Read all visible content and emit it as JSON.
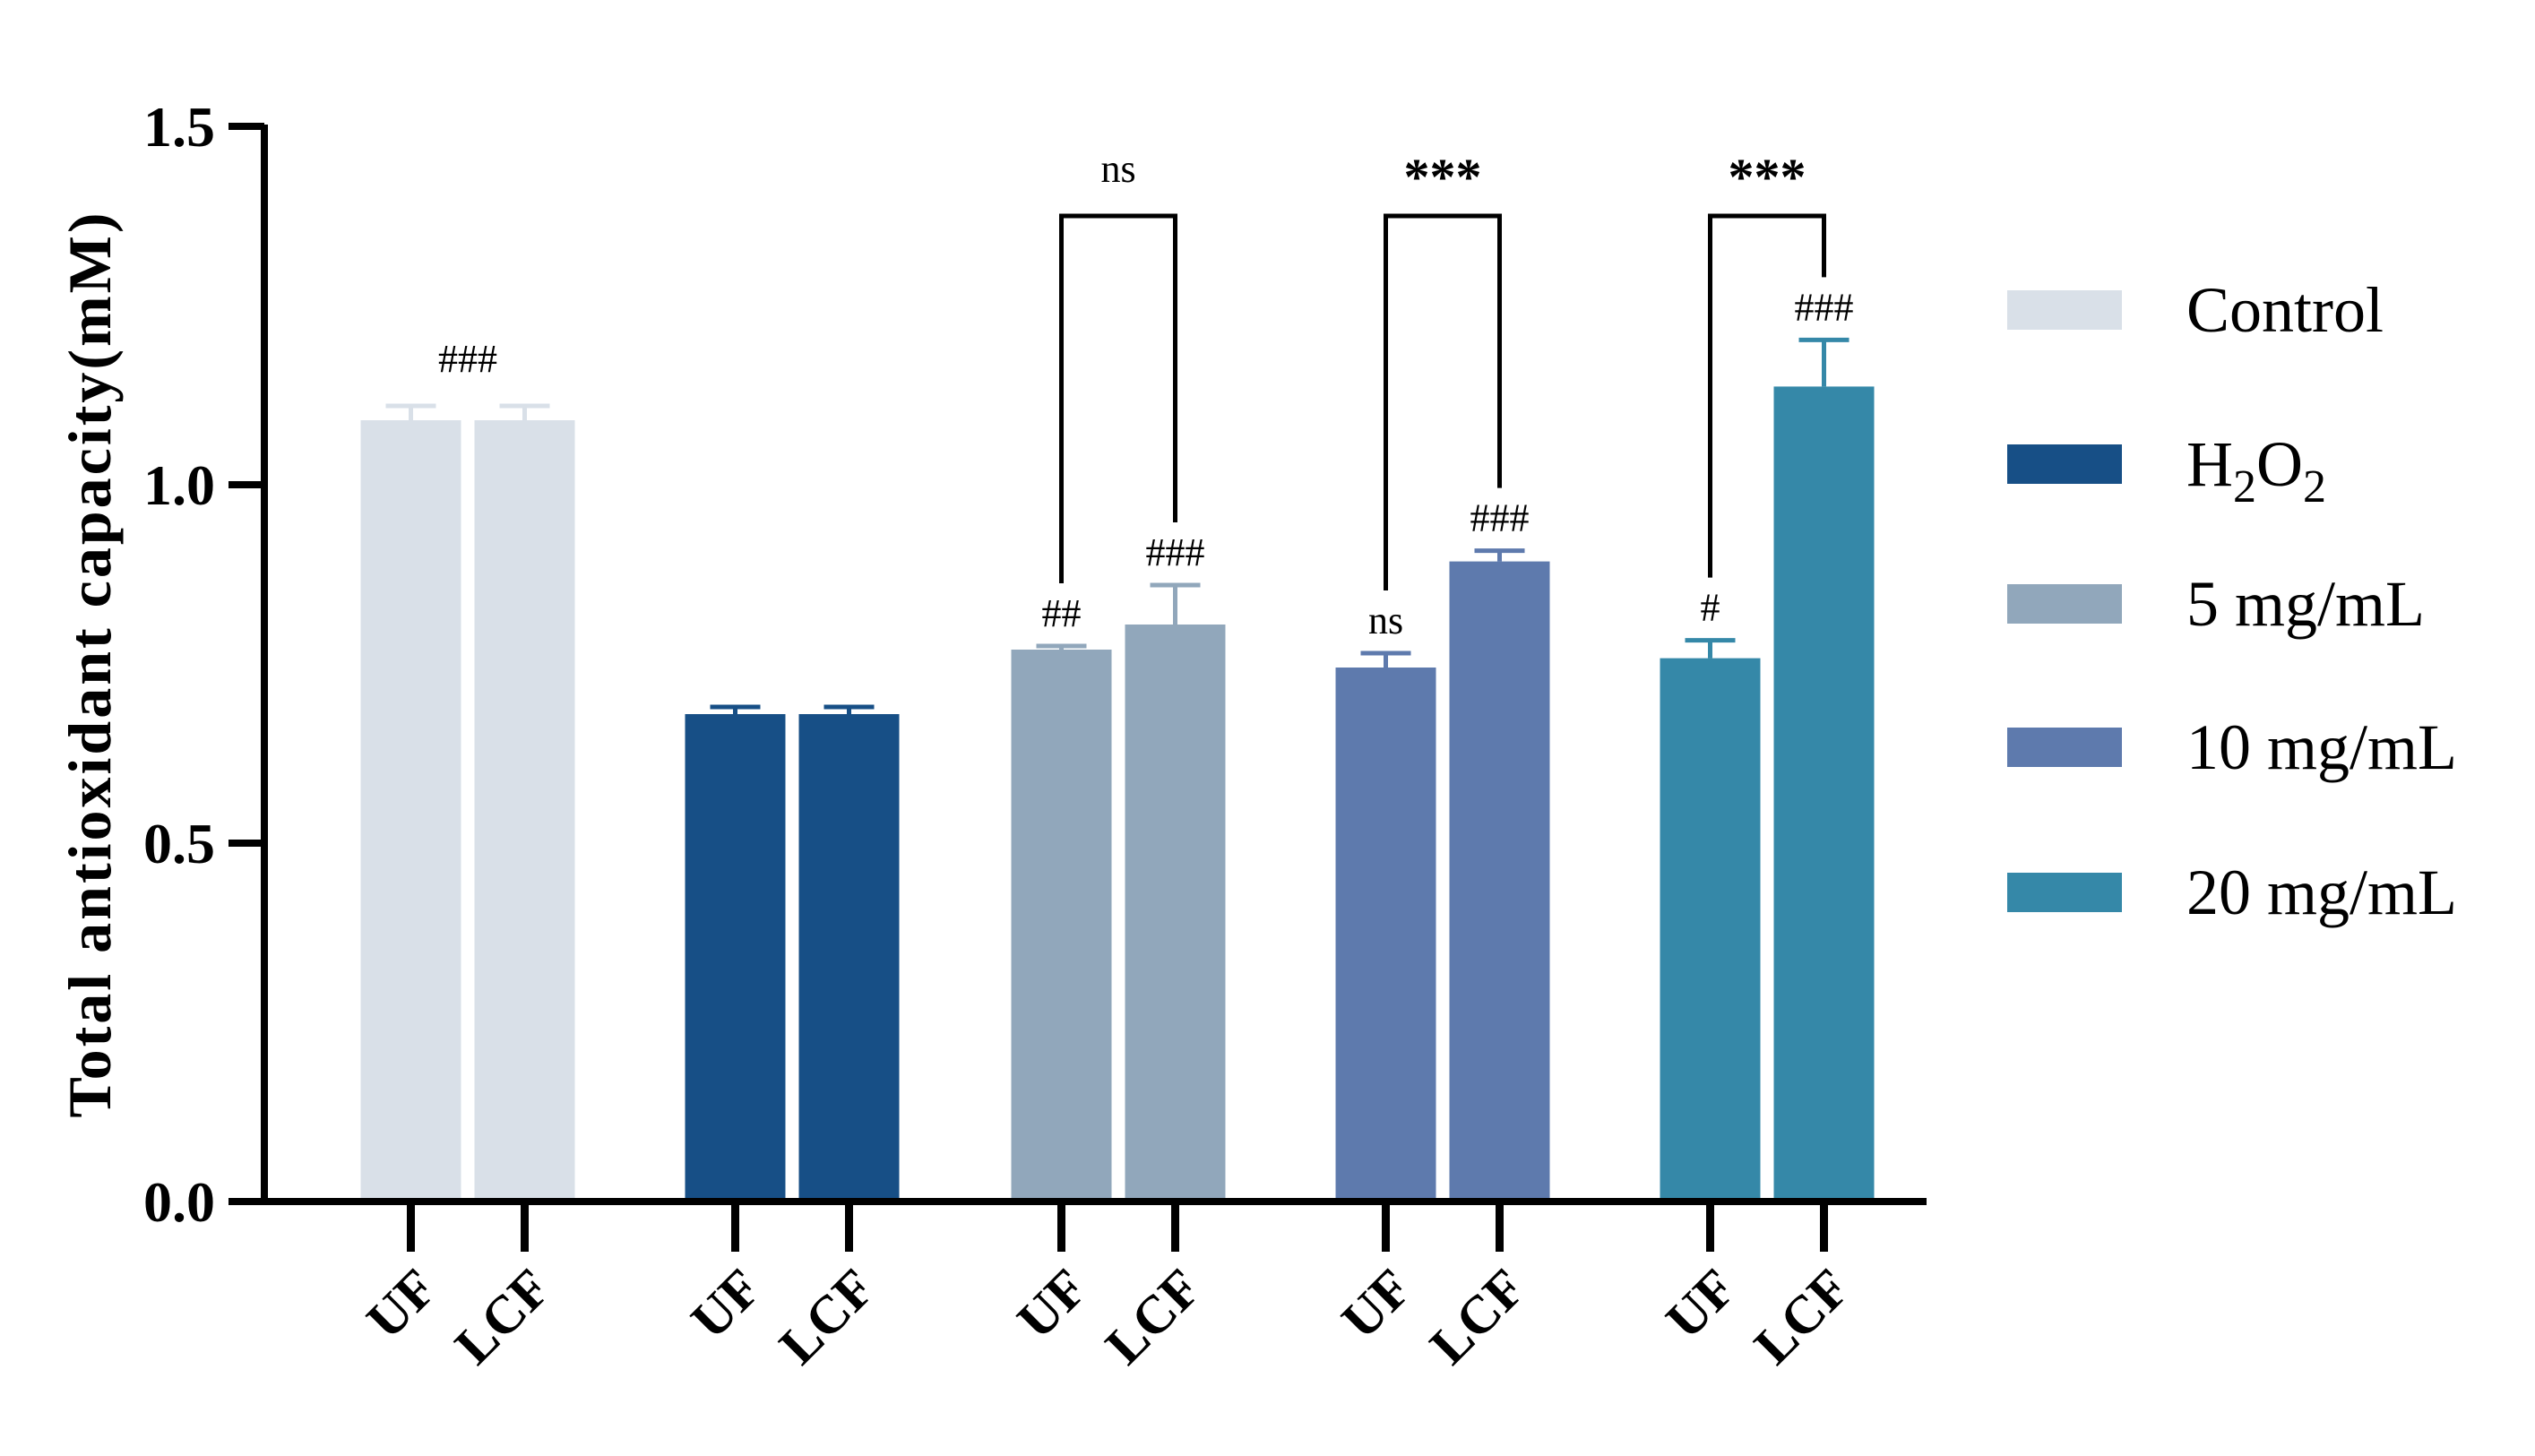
{
  "chart_data": {
    "type": "bar",
    "title": "",
    "xlabel": "",
    "ylabel": "Total antioxidant capacity(mM)",
    "ylim": [
      0,
      1.5
    ],
    "yticks": [
      "0.0",
      "0.5",
      "1.0",
      "1.5"
    ],
    "ytick_values": [
      0,
      0.5,
      1.0,
      1.5
    ],
    "categories": [
      "UF",
      "LCF"
    ],
    "legend_position": "right",
    "groups": [
      {
        "name": "Control",
        "color": "#d9e0e8",
        "bars": [
          {
            "label": "UF",
            "value": 1.09,
            "error": 0.02,
            "annotation": ""
          },
          {
            "label": "LCF",
            "value": 1.09,
            "error": 0.02,
            "annotation": ""
          }
        ],
        "group_annotation": "###"
      },
      {
        "name": "H2O2",
        "color": "#174f86",
        "bars": [
          {
            "label": "UF",
            "value": 0.68,
            "error": 0.01,
            "annotation": ""
          },
          {
            "label": "LCF",
            "value": 0.68,
            "error": 0.01,
            "annotation": ""
          }
        ],
        "group_annotation": ""
      },
      {
        "name": "5 mg/mL",
        "color": "#91a7bb",
        "bars": [
          {
            "label": "UF",
            "value": 0.77,
            "error": 0.005,
            "annotation": "##"
          },
          {
            "label": "LCF",
            "value": 0.805,
            "error": 0.055,
            "annotation": "###"
          }
        ],
        "group_annotation": ""
      },
      {
        "name": "10 mg/mL",
        "color": "#5e7aad",
        "bars": [
          {
            "label": "UF",
            "value": 0.745,
            "error": 0.02,
            "annotation": "ns"
          },
          {
            "label": "LCF",
            "value": 0.893,
            "error": 0.015,
            "annotation": "###"
          }
        ],
        "group_annotation": ""
      },
      {
        "name": "20 mg/mL",
        "color": "#3588a8",
        "bars": [
          {
            "label": "UF",
            "value": 0.758,
            "error": 0.025,
            "annotation": "#"
          },
          {
            "label": "LCF",
            "value": 1.137,
            "error": 0.065,
            "annotation": "###"
          }
        ],
        "group_annotation": ""
      }
    ],
    "comparisons": [
      {
        "group": 2,
        "label": "ns",
        "level": 1.375
      },
      {
        "group": 3,
        "label": "***",
        "level": 1.375
      },
      {
        "group": 4,
        "label": "***",
        "level": 1.375
      }
    ],
    "legend": [
      {
        "name": "Control",
        "color": "#d9e0e8"
      },
      {
        "name": "H2O2",
        "main": "H",
        "sub1": "2",
        "mid": "O",
        "sub2": "2",
        "color": "#174f86"
      },
      {
        "name": "5 mg/mL",
        "color": "#91a7bb"
      },
      {
        "name": "10 mg/mL",
        "color": "#5e7aad"
      },
      {
        "name": "20 mg/mL",
        "color": "#3588a8"
      }
    ]
  }
}
